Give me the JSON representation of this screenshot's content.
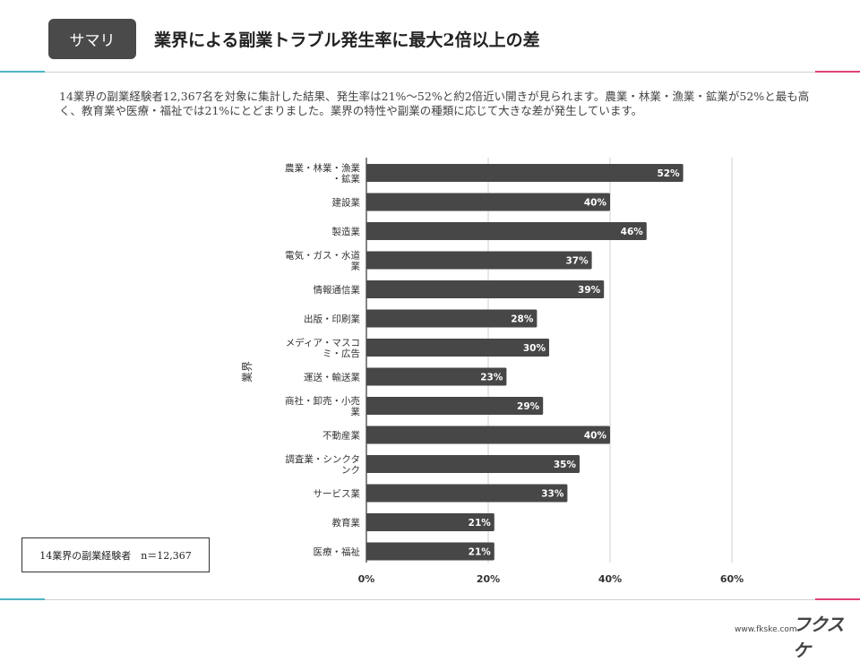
{
  "header": {
    "badge": "サマリ",
    "title": "業界による副業トラブル発生率に最大2倍以上の差"
  },
  "summary": "14業界の副業経験者12,367名を対象に集計した結果、発生率は21%〜52%と約2倍近い開きが見られます。農業・林業・漁業・鉱業が52%と最も高く、教育業や医療・福祉では21%にとどまりました。業界の特性や副業の種類に応じて大きな差が発生しています。",
  "note": "14業界の副業経験者　n＝12,367",
  "footer": {
    "url": "www.fkske.com",
    "logo": "フクスケ"
  },
  "colors": {
    "bar": "#474747",
    "accent_left": "#4db6c4",
    "accent_right": "#e0407a"
  },
  "chart_data": {
    "type": "bar",
    "orientation": "horizontal",
    "ylabel": "業界",
    "xlabel": "",
    "xlim": [
      0,
      60
    ],
    "xticks": [
      "0%",
      "20%",
      "40%",
      "60%"
    ],
    "grid": true,
    "categories": [
      [
        "農業・林業・漁業",
        "・鉱業"
      ],
      [
        "建設業"
      ],
      [
        "製造業"
      ],
      [
        "電気・ガス・水道",
        "業"
      ],
      [
        "情報通信業"
      ],
      [
        "出版・印刷業"
      ],
      [
        "メディア・マスコ",
        "ミ・広告"
      ],
      [
        "運送・輸送業"
      ],
      [
        "商社・卸売・小売",
        "業"
      ],
      [
        "不動産業"
      ],
      [
        "調査業・シンクタ",
        "ンク"
      ],
      [
        "サービス業"
      ],
      [
        "教育業"
      ],
      [
        "医療・福祉"
      ]
    ],
    "values": [
      52,
      40,
      46,
      37,
      39,
      28,
      30,
      23,
      29,
      40,
      35,
      33,
      21,
      21
    ],
    "data_labels": [
      "52%",
      "40%",
      "46%",
      "37%",
      "39%",
      "28%",
      "30%",
      "23%",
      "29%",
      "40%",
      "35%",
      "33%",
      "21%",
      "21%"
    ]
  }
}
